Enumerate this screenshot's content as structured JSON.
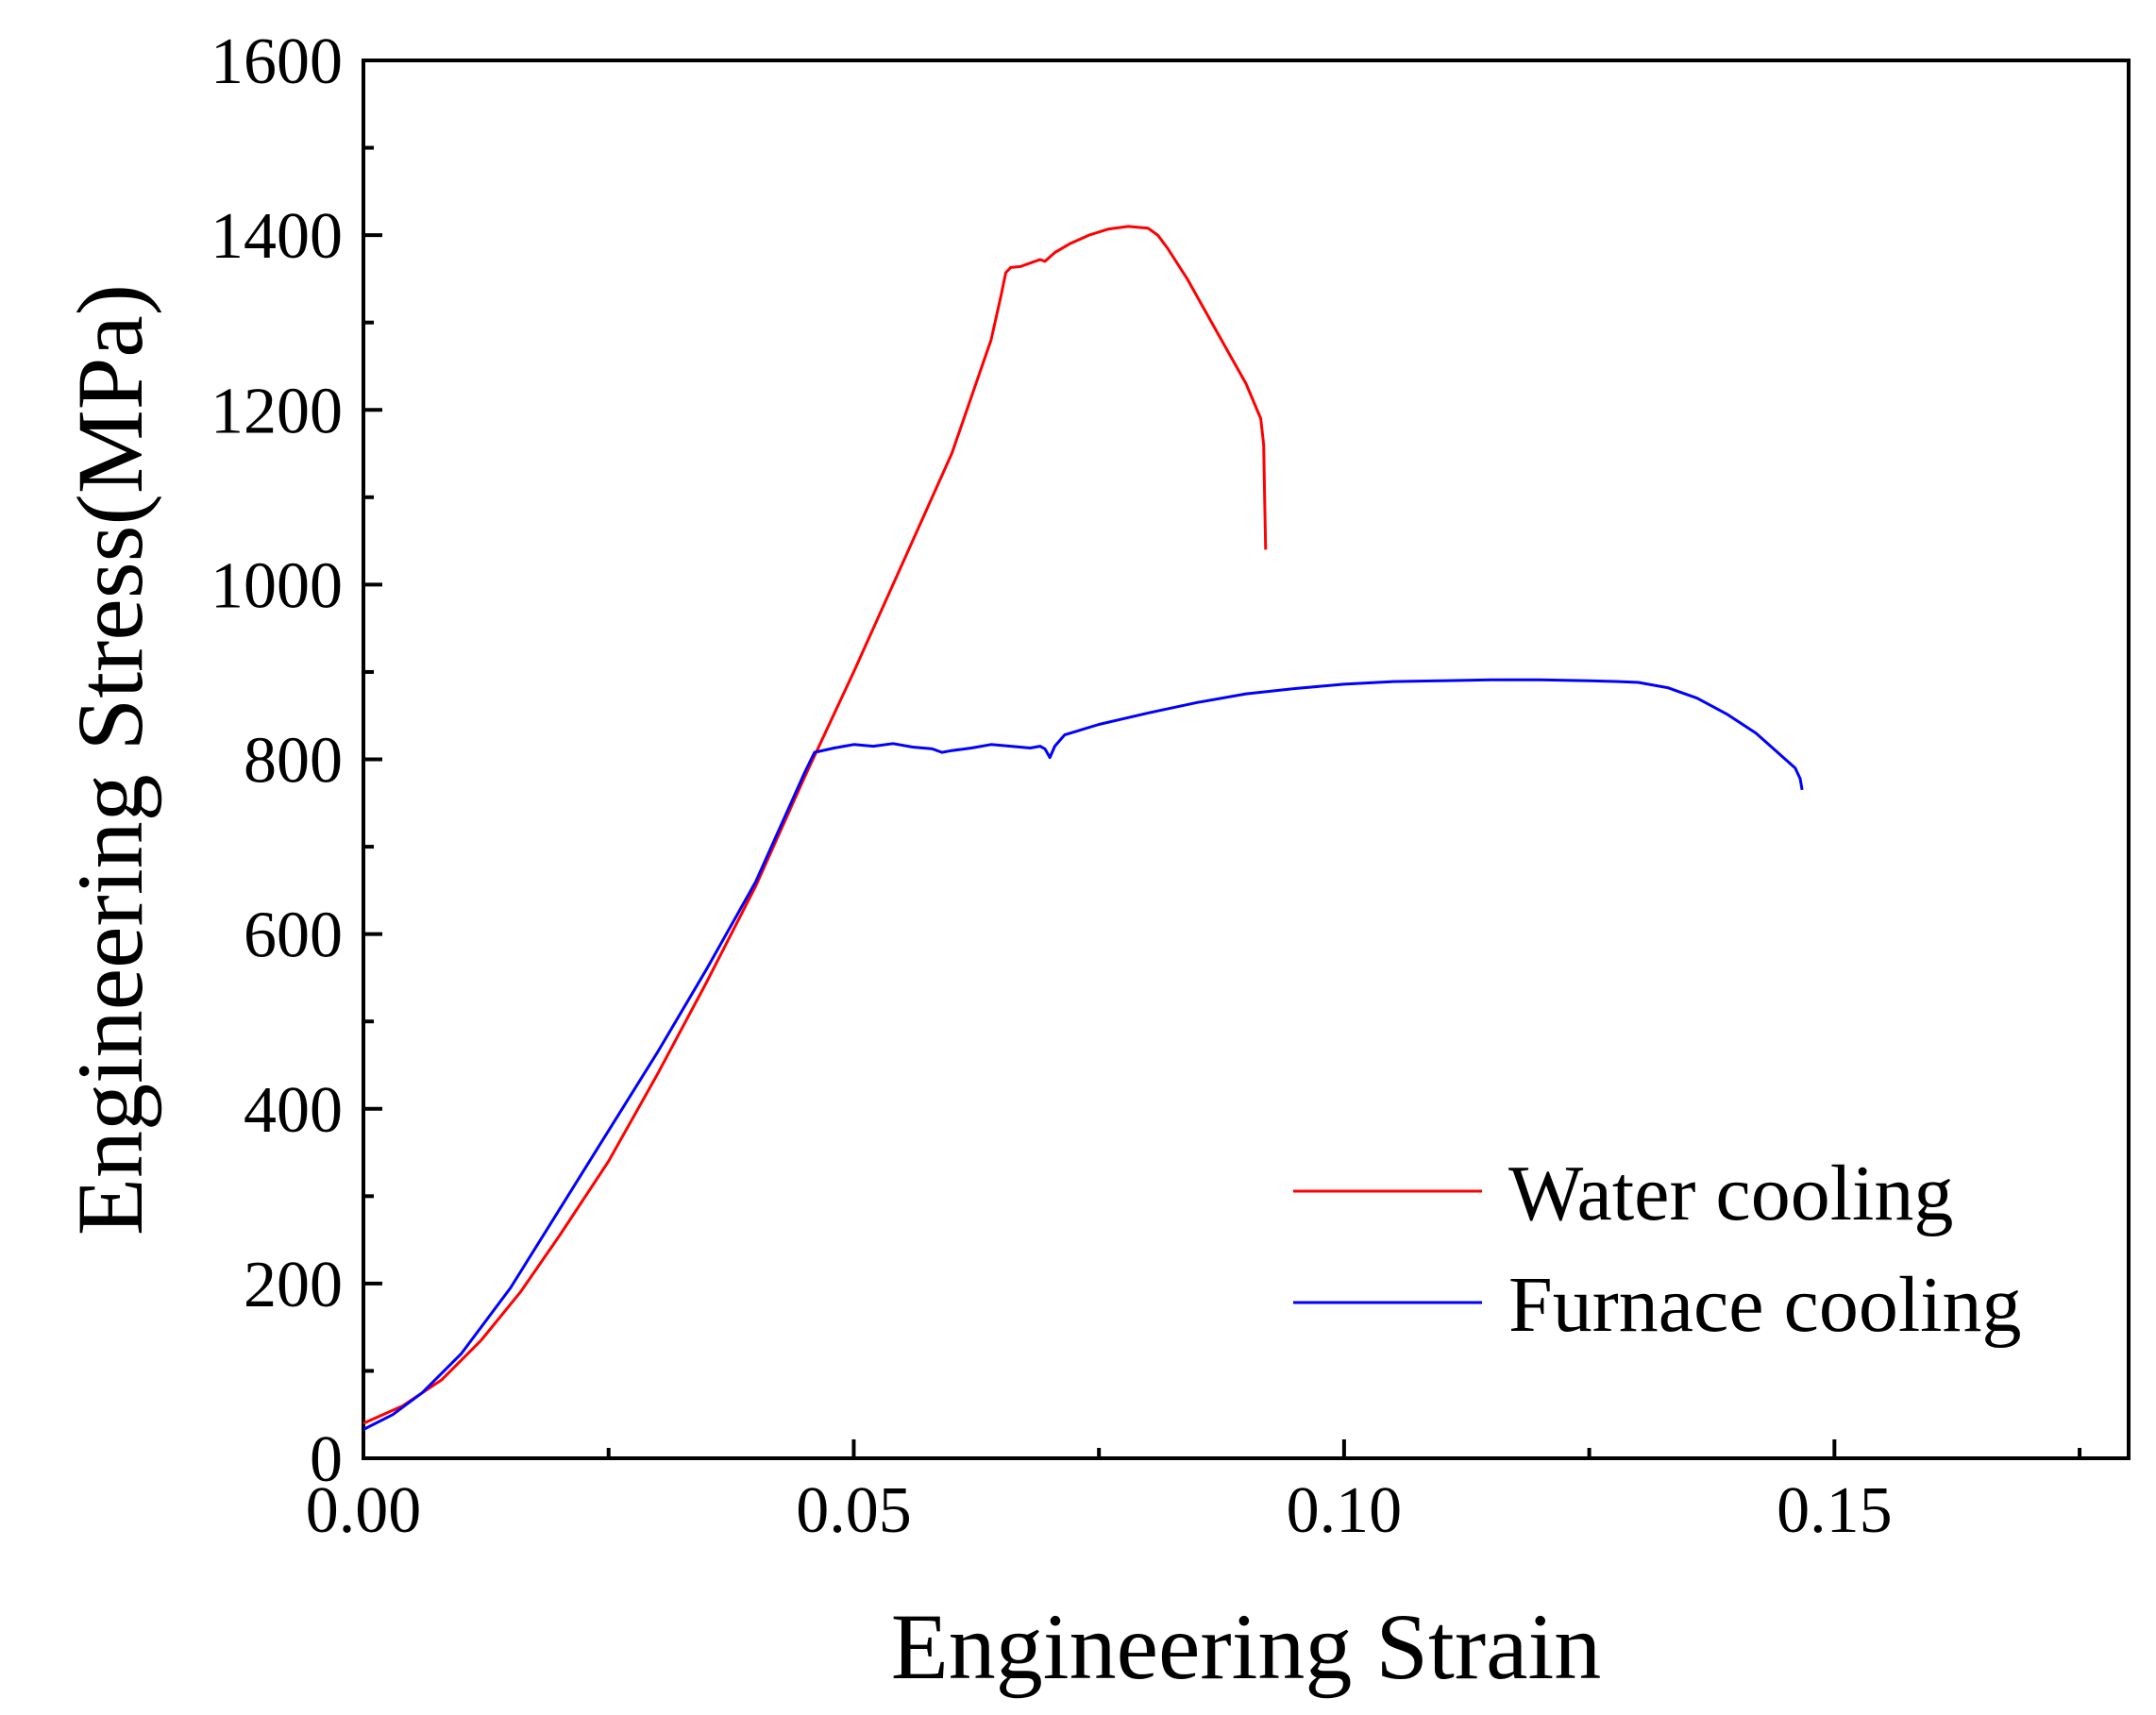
{
  "chart_data": {
    "type": "line",
    "title": "",
    "xlabel": "Engineering Strain",
    "ylabel": "Engineering Stress(MPa)",
    "xlim": [
      0,
      0.18
    ],
    "ylim": [
      0,
      1600
    ],
    "x_ticks": [
      0.0,
      0.05,
      0.1,
      0.15
    ],
    "x_tick_labels": [
      "0.00",
      "0.05",
      "0.10",
      "0.15"
    ],
    "x_minor_ticks": [
      0.025,
      0.075,
      0.125,
      0.175
    ],
    "y_ticks": [
      0,
      200,
      400,
      600,
      800,
      1000,
      1200,
      1400,
      1600
    ],
    "y_tick_labels": [
      "0",
      "200",
      "400",
      "600",
      "800",
      "1000",
      "1200",
      "1400",
      "1600"
    ],
    "y_minor_ticks": [
      100,
      300,
      500,
      700,
      900,
      1100,
      1300,
      1500
    ],
    "grid": false,
    "legend_position": "bottom-right",
    "series": [
      {
        "name": "Water cooling",
        "color": "#ff0000",
        "points": [
          [
            0.0,
            40
          ],
          [
            0.004,
            60
          ],
          [
            0.008,
            90
          ],
          [
            0.012,
            135
          ],
          [
            0.016,
            190
          ],
          [
            0.02,
            255
          ],
          [
            0.025,
            340
          ],
          [
            0.03,
            440
          ],
          [
            0.035,
            545
          ],
          [
            0.04,
            655
          ],
          [
            0.045,
            780
          ],
          [
            0.05,
            900
          ],
          [
            0.055,
            1025
          ],
          [
            0.06,
            1150
          ],
          [
            0.064,
            1280
          ],
          [
            0.065,
            1330
          ],
          [
            0.0655,
            1357
          ],
          [
            0.066,
            1363
          ],
          [
            0.067,
            1364
          ],
          [
            0.068,
            1368
          ],
          [
            0.069,
            1372
          ],
          [
            0.0695,
            1370
          ],
          [
            0.0705,
            1380
          ],
          [
            0.072,
            1390
          ],
          [
            0.074,
            1400
          ],
          [
            0.076,
            1407
          ],
          [
            0.078,
            1410
          ],
          [
            0.08,
            1408
          ],
          [
            0.081,
            1400
          ],
          [
            0.082,
            1385
          ],
          [
            0.084,
            1350
          ],
          [
            0.086,
            1310
          ],
          [
            0.088,
            1270
          ],
          [
            0.09,
            1230
          ],
          [
            0.0915,
            1190
          ],
          [
            0.0918,
            1160
          ],
          [
            0.0919,
            1100
          ],
          [
            0.092,
            1040
          ]
        ]
      },
      {
        "name": "Furnace cooling",
        "color": "#0000ff",
        "points": [
          [
            0.0,
            33
          ],
          [
            0.003,
            50
          ],
          [
            0.006,
            75
          ],
          [
            0.01,
            120
          ],
          [
            0.015,
            195
          ],
          [
            0.02,
            285
          ],
          [
            0.025,
            375
          ],
          [
            0.03,
            465
          ],
          [
            0.035,
            560
          ],
          [
            0.04,
            660
          ],
          [
            0.043,
            735
          ],
          [
            0.045,
            785
          ],
          [
            0.046,
            808
          ],
          [
            0.048,
            813
          ],
          [
            0.05,
            817
          ],
          [
            0.052,
            815
          ],
          [
            0.054,
            818
          ],
          [
            0.056,
            814
          ],
          [
            0.058,
            812
          ],
          [
            0.059,
            808
          ],
          [
            0.06,
            810
          ],
          [
            0.062,
            813
          ],
          [
            0.064,
            817
          ],
          [
            0.066,
            815
          ],
          [
            0.068,
            813
          ],
          [
            0.069,
            815
          ],
          [
            0.0695,
            812
          ],
          [
            0.07,
            802
          ],
          [
            0.0705,
            815
          ],
          [
            0.0715,
            828
          ],
          [
            0.075,
            840
          ],
          [
            0.08,
            853
          ],
          [
            0.085,
            865
          ],
          [
            0.09,
            875
          ],
          [
            0.095,
            881
          ],
          [
            0.1,
            886
          ],
          [
            0.105,
            889
          ],
          [
            0.11,
            890
          ],
          [
            0.115,
            891
          ],
          [
            0.12,
            891
          ],
          [
            0.125,
            890
          ],
          [
            0.128,
            889
          ],
          [
            0.13,
            888
          ],
          [
            0.133,
            882
          ],
          [
            0.136,
            870
          ],
          [
            0.139,
            852
          ],
          [
            0.142,
            830
          ],
          [
            0.144,
            810
          ],
          [
            0.146,
            790
          ],
          [
            0.1465,
            778
          ],
          [
            0.1467,
            765
          ]
        ]
      }
    ]
  }
}
